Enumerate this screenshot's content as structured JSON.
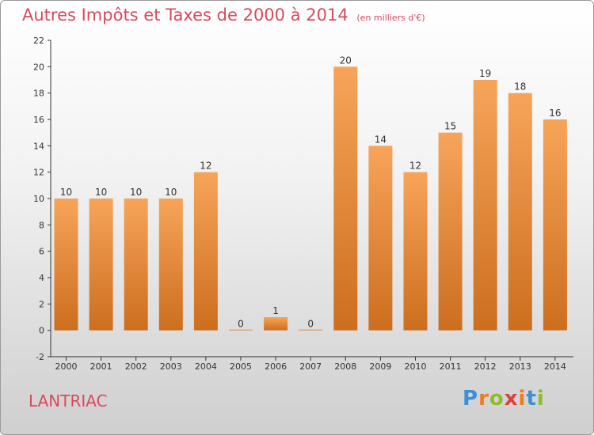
{
  "title": "Autres Impôts et Taxes de 2000 à 2014",
  "subtitle": "(en milliers d'€)",
  "commune": "LANTRIAC",
  "logo": {
    "letters": [
      "P",
      "r",
      "o",
      "x",
      "i",
      "t",
      "i"
    ],
    "colors": [
      "#3a8fd6",
      "#f07a20",
      "#8bbf2a",
      "#e53b3b",
      "#f07a20",
      "#3a8fd6",
      "#8bbf2a"
    ]
  },
  "colors": {
    "bar_light": "#f7a45a",
    "bar_dark": "#cc6e1e",
    "title": "#d94a5a",
    "axis": "#333333"
  },
  "chart_data": {
    "type": "bar",
    "title": "Autres Impôts et Taxes de 2000 à 2014",
    "subtitle": "(en milliers d'€)",
    "categories": [
      "2000",
      "2001",
      "2002",
      "2003",
      "2004",
      "2005",
      "2006",
      "2007",
      "2008",
      "2009",
      "2010",
      "2011",
      "2012",
      "2013",
      "2014"
    ],
    "values": [
      10,
      10,
      10,
      10,
      12,
      0,
      1,
      0,
      20,
      14,
      12,
      15,
      19,
      18,
      16
    ],
    "data_labels": [
      "10",
      "10",
      "10",
      "10",
      "12",
      "0",
      "1",
      "0",
      "20",
      "14",
      "12",
      "15",
      "19",
      "18",
      "16"
    ],
    "ylim": [
      -2,
      22
    ],
    "yticks": [
      -2,
      0,
      2,
      4,
      6,
      8,
      10,
      12,
      14,
      16,
      18,
      20,
      22
    ],
    "grid": false,
    "legend": "none"
  }
}
